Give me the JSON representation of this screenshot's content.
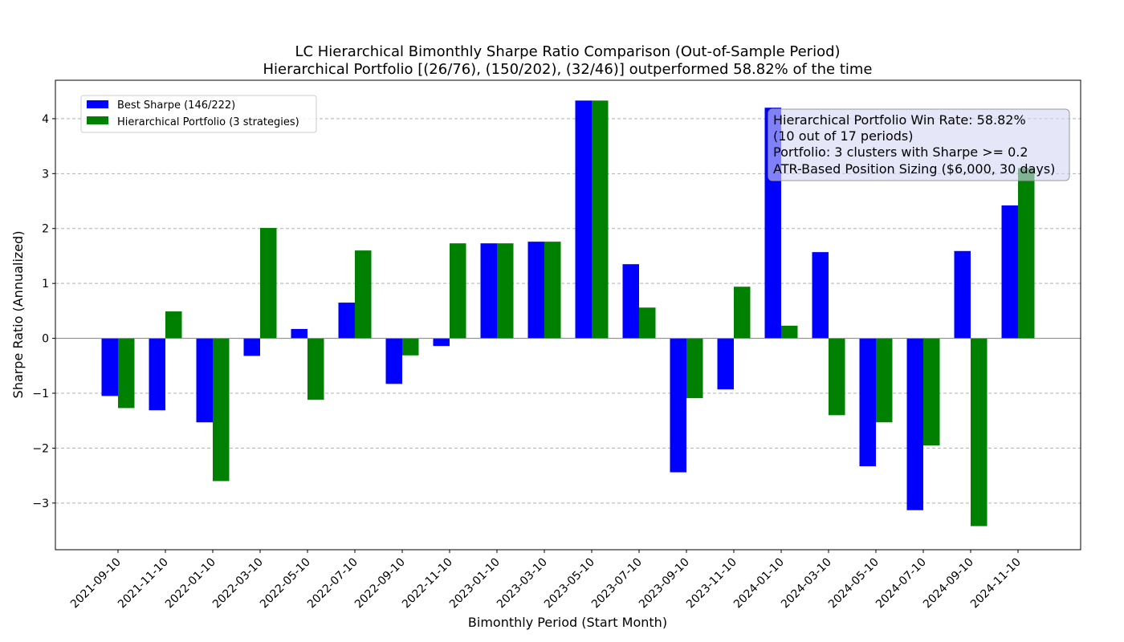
{
  "chart_data": {
    "type": "bar",
    "title": "LC Hierarchical Bimonthly Sharpe Ratio Comparison (Out-of-Sample Period)",
    "subtitle": "Hierarchical Portfolio [(26/76), (150/202), (32/46)] outperformed 58.82% of the time",
    "xlabel": "Bimonthly Period (Start Month)",
    "ylabel": "Sharpe Ratio (Annualized)",
    "ylim": [
      -3.85,
      4.7
    ],
    "yticks": [
      -3,
      -2,
      -1,
      0,
      1,
      2,
      3,
      4
    ],
    "ytick_labels": [
      "−3",
      "−2",
      "−1",
      "0",
      "1",
      "2",
      "3",
      "4"
    ],
    "grid": true,
    "legend_position": "top-left",
    "categories": [
      "2021-09-10",
      "2021-11-10",
      "2022-01-10",
      "2022-03-10",
      "2022-05-10",
      "2022-07-10",
      "2022-09-10",
      "2022-11-10",
      "2023-01-10",
      "2023-03-10",
      "2023-05-10",
      "2023-07-10",
      "2023-09-10",
      "2023-11-10",
      "2024-01-10",
      "2024-03-10",
      "2024-05-10",
      "2024-07-10",
      "2024-09-10",
      "2024-11-10"
    ],
    "series": [
      {
        "name": "Best Sharpe (146/222)",
        "color": "#0000ff",
        "values": [
          -1.05,
          -1.31,
          -1.53,
          -0.32,
          0.17,
          0.65,
          -0.83,
          -0.14,
          1.73,
          1.76,
          4.33,
          1.35,
          -2.44,
          -0.93,
          4.2,
          1.57,
          -2.33,
          -3.13,
          1.59,
          2.42
        ]
      },
      {
        "name": "Hierarchical Portfolio (3 strategies)",
        "color": "#008000",
        "values": [
          -1.27,
          0.49,
          -2.6,
          2.01,
          -1.12,
          1.6,
          -0.31,
          1.73,
          1.73,
          1.76,
          4.33,
          0.56,
          -1.09,
          0.94,
          0.23,
          -1.4,
          -1.53,
          -1.95,
          -3.42,
          3.1
        ]
      }
    ],
    "annotation": {
      "lines": [
        "Hierarchical Portfolio Win Rate: 58.82%",
        "(10 out of 17 periods)",
        "Portfolio: 3 clusters with Sharpe >= 0.2",
        "ATR-Based Position Sizing ($6,000, 30 days)"
      ],
      "background": "#d6d6f5",
      "edge_color": "#999999"
    }
  }
}
